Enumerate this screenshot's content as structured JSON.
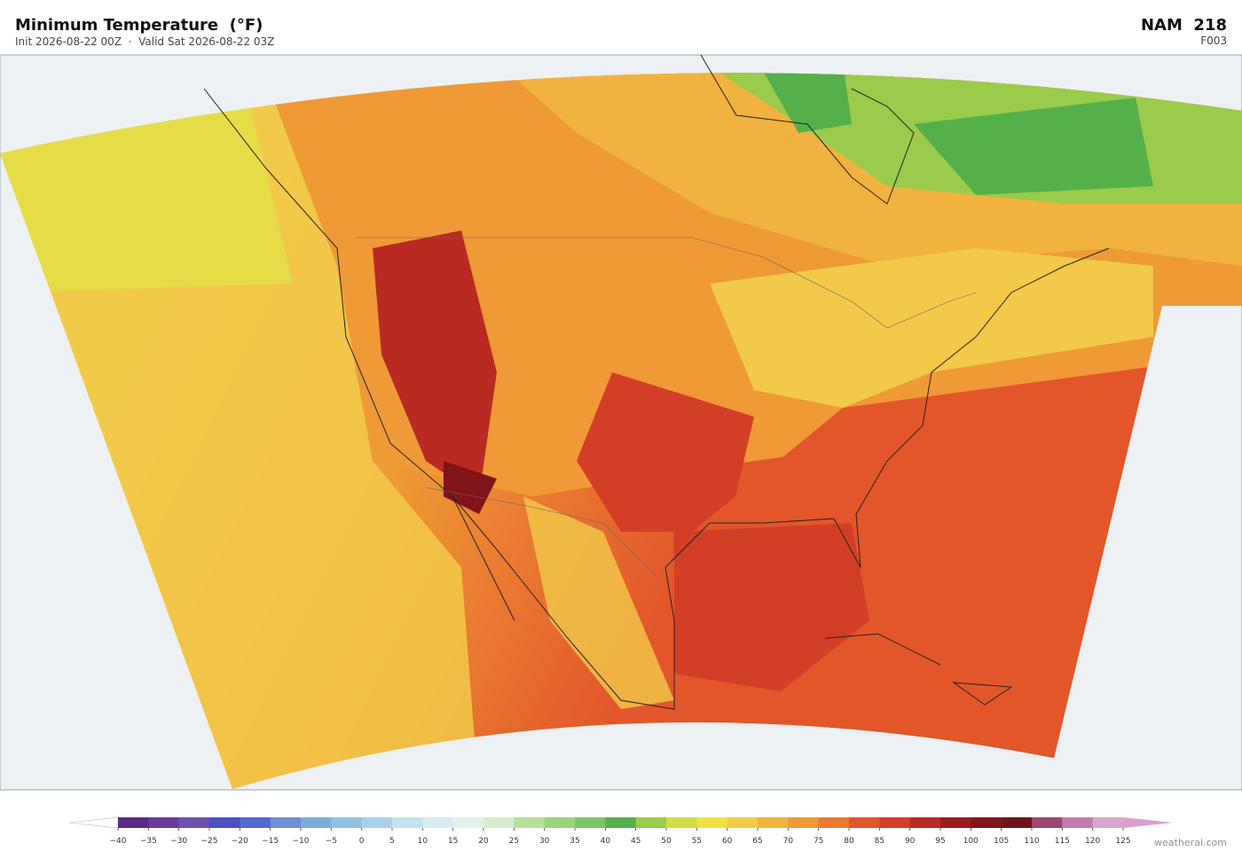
{
  "header": {
    "title": "Minimum Temperature  (°F)",
    "subtitle": "Init 2026-08-22 00Z  ·  Valid Sat 2026-08-22 03Z",
    "model": "NAM  218",
    "forecast_hour": "F003"
  },
  "colorbar": {
    "ticks": [
      {
        "value": -40,
        "label": "−40"
      },
      {
        "value": -35,
        "label": "−35"
      },
      {
        "value": -30,
        "label": "−30"
      },
      {
        "value": -25,
        "label": "−25"
      },
      {
        "value": -20,
        "label": "−20"
      },
      {
        "value": -15,
        "label": "−15"
      },
      {
        "value": -10,
        "label": "−10"
      },
      {
        "value": -5,
        "label": "−5"
      },
      0,
      5,
      10,
      15,
      20,
      25,
      30,
      35,
      40,
      45,
      50,
      55,
      60,
      65,
      70,
      75,
      80,
      85,
      90,
      95,
      100,
      105,
      110,
      115,
      120,
      125
    ],
    "colors": [
      "#5b2a86",
      "#6b3a9a",
      "#6f4fb0",
      "#4b4fc0",
      "#5168cc",
      "#6f8fd6",
      "#7eaadc",
      "#92c0e3",
      "#a8d2ea",
      "#c2e2ef",
      "#d6ecf2",
      "#e2f2ea",
      "#d6edcc",
      "#b8e09a",
      "#98d577",
      "#7cc765",
      "#55b04a",
      "#9acb4a",
      "#d4dc48",
      "#efe044",
      "#f2c94a",
      "#f1b23f",
      "#ef9a36",
      "#ec7a30",
      "#e2562a",
      "#d33f26",
      "#b92a22",
      "#9a1d1e",
      "#801419",
      "#6e1418",
      "#9a4670",
      "#c47aae",
      "#d8a6d0"
    ],
    "under_color": "#ffffff",
    "over_color": "#d9a0cf"
  },
  "watermark": "weatherai.com"
}
